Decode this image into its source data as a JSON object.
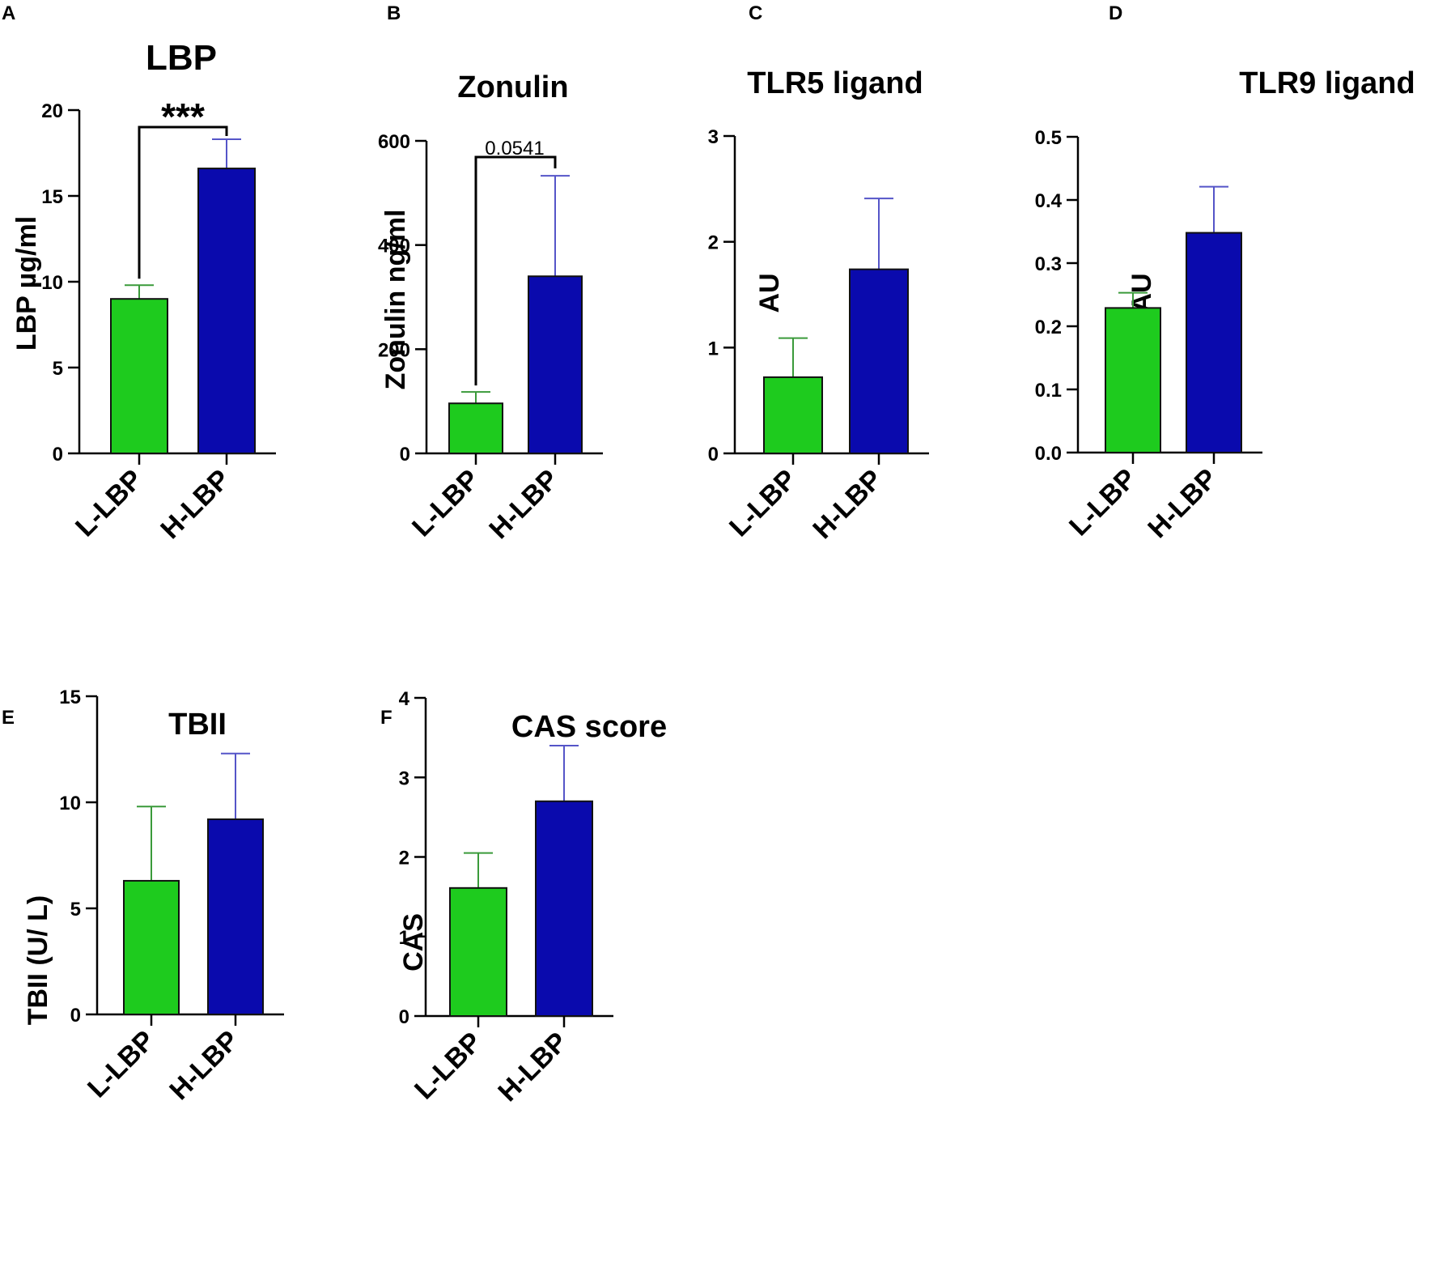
{
  "figure": {
    "colors": {
      "low": "#1ecb1e",
      "high": "#0a0aad",
      "low_err": "#3a9a3a",
      "high_err": "#5555c8"
    },
    "panels": [
      {
        "label": "A",
        "title": "LBP",
        "ylabel": "LBP µg/ml",
        "significance": "***"
      },
      {
        "label": "B",
        "title": "Zonulin",
        "ylabel": "Zonulin ng/ml",
        "significance": "0.0541"
      },
      {
        "label": "C",
        "title": "TLR5 ligand",
        "ylabel": "AU",
        "significance": ""
      },
      {
        "label": "D",
        "title": "TLR9 ligand",
        "ylabel": "AU",
        "significance": ""
      },
      {
        "label": "E",
        "title": "TBII",
        "ylabel": "TBII (U/ L)",
        "significance": ""
      },
      {
        "label": "F",
        "title": "CAS score",
        "ylabel": "CAS",
        "significance": ""
      }
    ]
  },
  "chart_data": [
    {
      "type": "bar",
      "title": "LBP",
      "ylabel": "LBP µg/ml",
      "xlabel": "",
      "categories": [
        "L-LBP",
        "H-LBP"
      ],
      "values": [
        9.0,
        16.6
      ],
      "errors": [
        0.8,
        1.7
      ],
      "ylim": [
        0,
        20
      ],
      "yticks": [
        "0",
        "5",
        "10",
        "15",
        "20"
      ],
      "significance": "***"
    },
    {
      "type": "bar",
      "title": "Zonulin",
      "ylabel": "Zonulin ng/ml",
      "xlabel": "",
      "categories": [
        "L-LBP",
        "H-LBP"
      ],
      "values": [
        96,
        340
      ],
      "errors": [
        22,
        193
      ],
      "ylim": [
        0,
        600
      ],
      "yticks": [
        "0",
        "200",
        "400",
        "600"
      ],
      "significance": "0.0541"
    },
    {
      "type": "bar",
      "title": "TLR5 ligand",
      "ylabel": "AU",
      "xlabel": "",
      "categories": [
        "L-LBP",
        "H-LBP"
      ],
      "values": [
        0.72,
        1.74
      ],
      "errors": [
        0.37,
        0.67
      ],
      "ylim": [
        0,
        3
      ],
      "yticks": [
        "0",
        "1",
        "2",
        "3"
      ]
    },
    {
      "type": "bar",
      "title": "TLR9 ligand",
      "ylabel": "AU",
      "xlabel": "",
      "categories": [
        "L-LBP",
        "H-LBP"
      ],
      "values": [
        0.229,
        0.348
      ],
      "errors": [
        0.024,
        0.073
      ],
      "ylim": [
        0,
        0.5
      ],
      "yticks": [
        "0.0",
        "0.1",
        "0.2",
        "0.3",
        "0.4",
        "0.5"
      ]
    },
    {
      "type": "bar",
      "title": "TBII",
      "ylabel": "TBII (U/ L)",
      "xlabel": "",
      "categories": [
        "L-LBP",
        "H-LBP"
      ],
      "values": [
        6.3,
        9.2
      ],
      "errors": [
        3.5,
        3.1
      ],
      "ylim": [
        0,
        15
      ],
      "yticks": [
        "0",
        "5",
        "10",
        "15"
      ]
    },
    {
      "type": "bar",
      "title": "CAS score",
      "ylabel": "CAS",
      "xlabel": "",
      "categories": [
        "L-LBP",
        "H-LBP"
      ],
      "values": [
        1.61,
        2.7
      ],
      "errors": [
        0.44,
        0.7
      ],
      "ylim": [
        0,
        4
      ],
      "yticks": [
        "0",
        "1",
        "2",
        "3",
        "4"
      ]
    }
  ]
}
